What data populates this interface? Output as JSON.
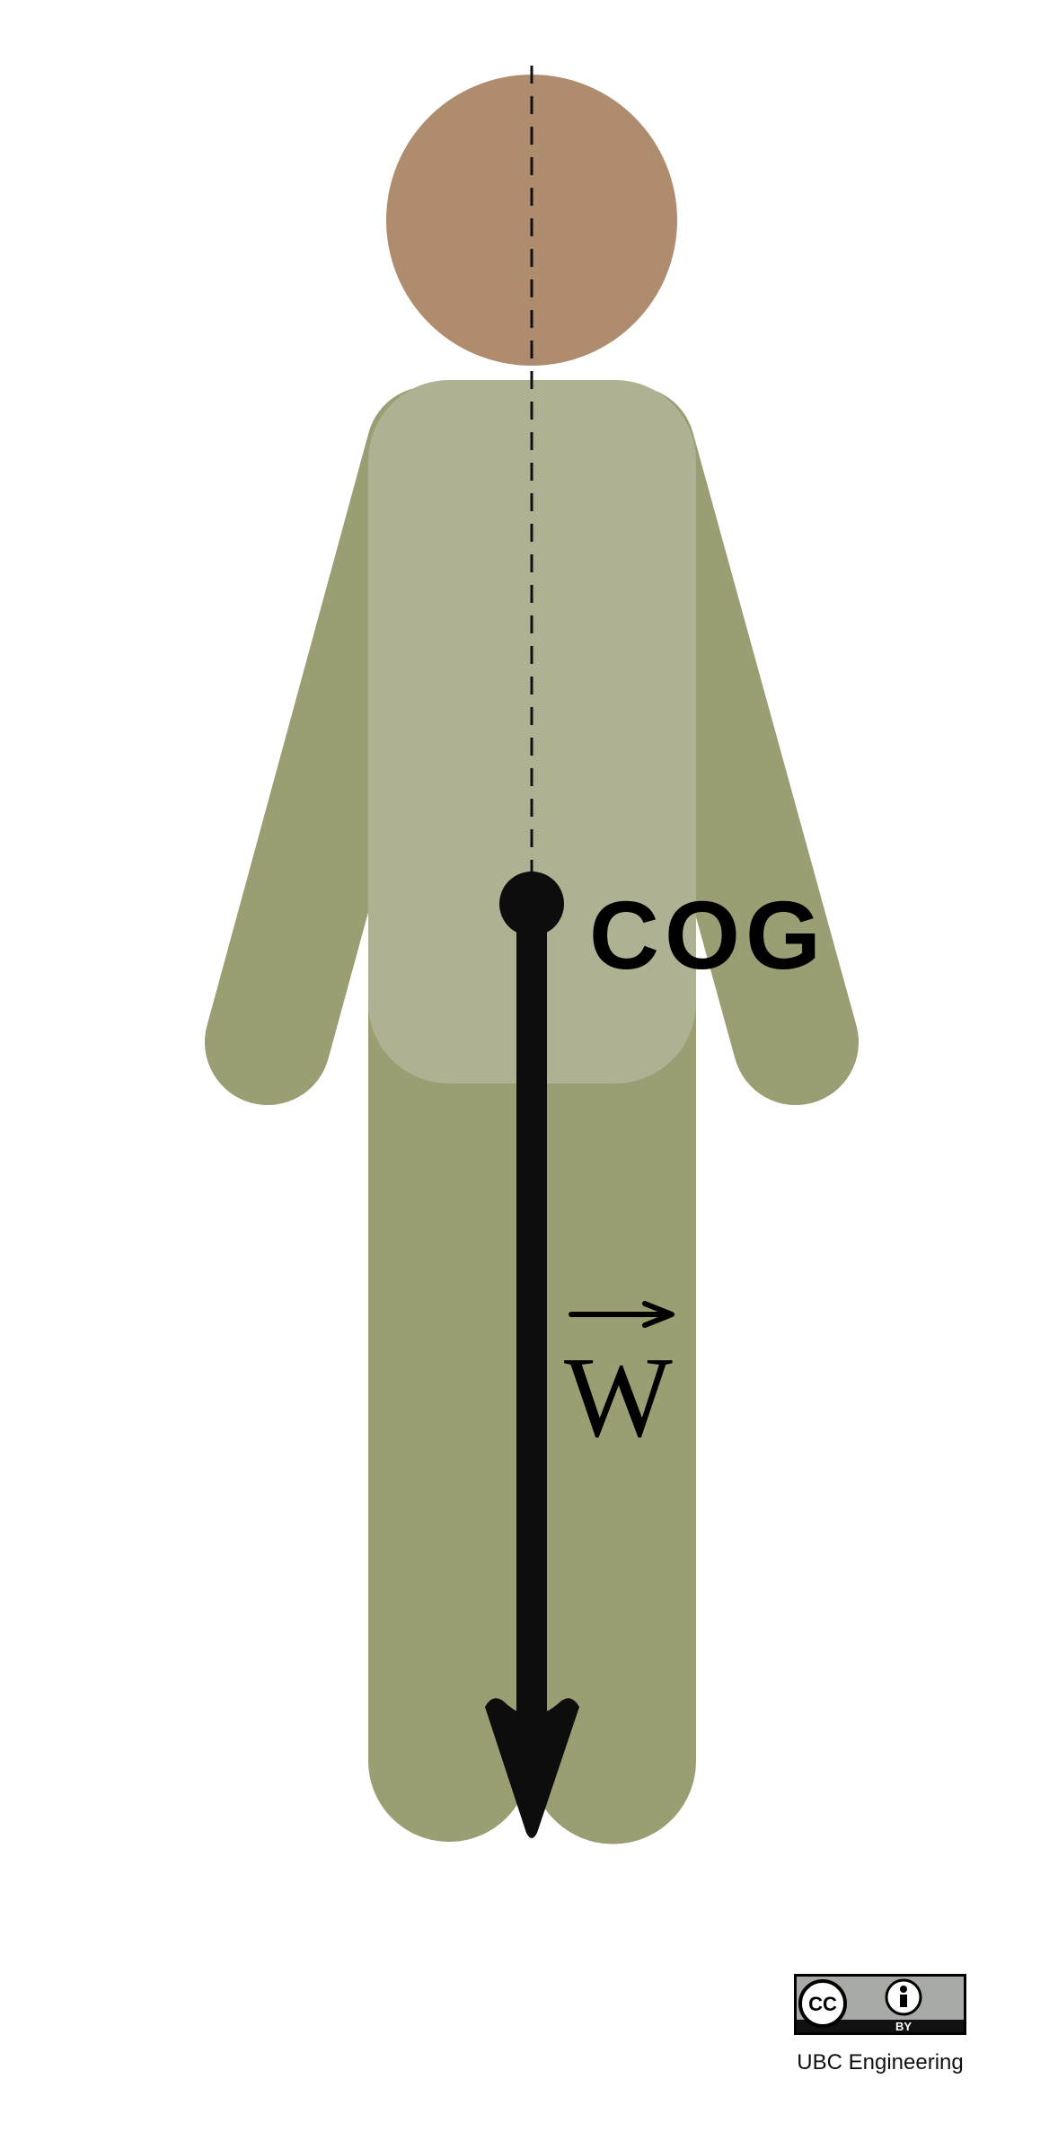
{
  "labels": {
    "cog": "COG",
    "weight": "W",
    "credit": "UBC Engineering"
  },
  "license_badge": {
    "name": "cc-by-badge",
    "cc_text": "CC",
    "by_text": "BY"
  },
  "colors": {
    "skin": "#B08C6E",
    "limbs": "#9A9E72",
    "torso": "#AEB192",
    "arrow": "#0D0D0D",
    "badge_gray": "#A8AAA6",
    "badge_dark": "#111111"
  },
  "icons": {
    "cog_point": "filled-circle-icon",
    "vector_arrow": "vector-arrow-icon",
    "license": "creative-commons-by-icon"
  }
}
